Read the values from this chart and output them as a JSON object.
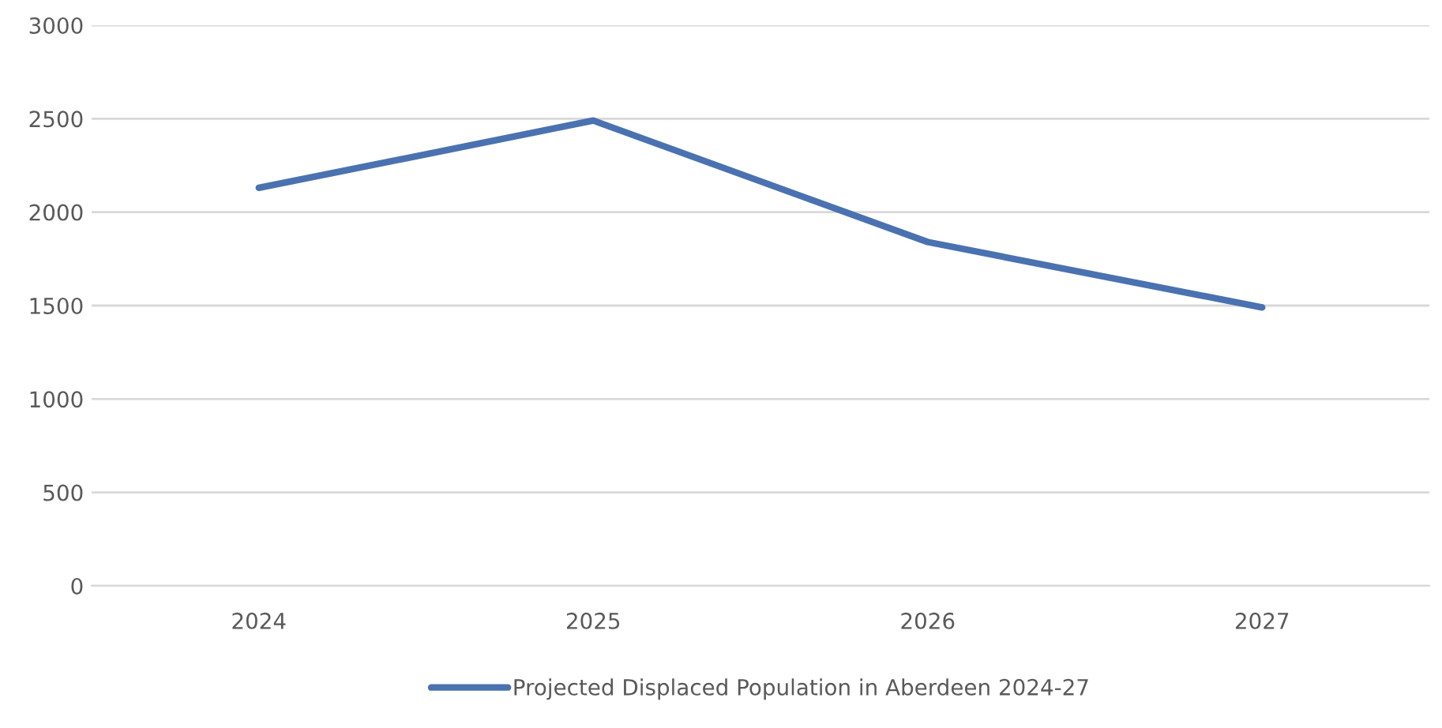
{
  "chart_data": {
    "type": "line",
    "categories": [
      "2024",
      "2025",
      "2026",
      "2027"
    ],
    "series": [
      {
        "name": "Projected Displaced Population in Aberdeen 2024-27",
        "color": "#4a72b0",
        "values": [
          2130,
          2490,
          1840,
          1490
        ]
      }
    ],
    "ylim": [
      0,
      3000
    ],
    "yticks": [
      0,
      500,
      1000,
      1500,
      2000,
      2500,
      3000
    ],
    "grid": "y",
    "legend": "bottom",
    "marker": "none",
    "line_style": "solid"
  }
}
